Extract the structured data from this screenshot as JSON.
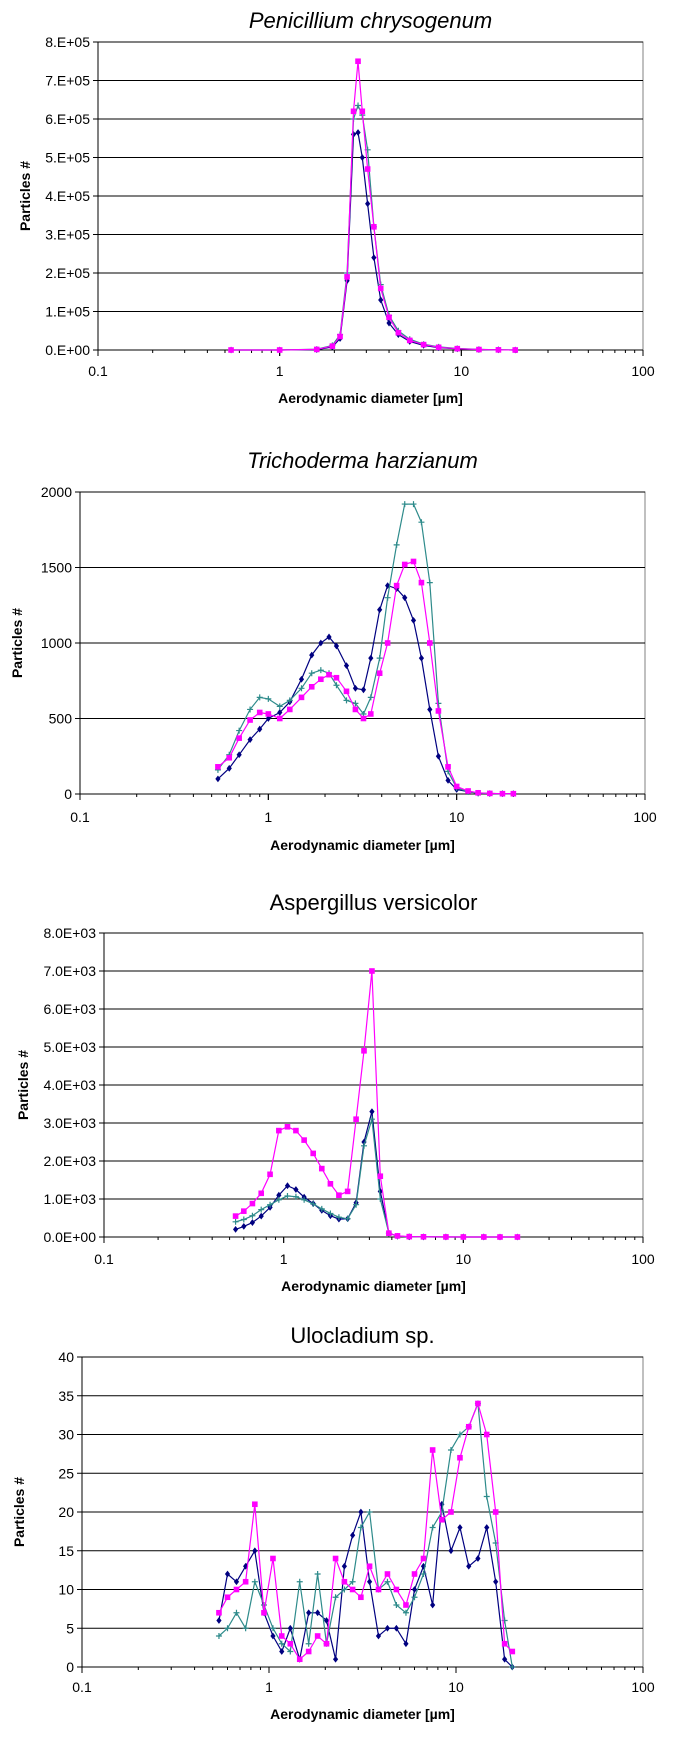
{
  "chart_data": [
    {
      "type": "line",
      "title": "Penicillium chrysogenum",
      "title_italic": true,
      "xlabel": "Aerodynamic diameter [µm]",
      "ylabel": "Particles #",
      "x_scale": "log",
      "xlim": [
        0.1,
        100
      ],
      "ylim": [
        0,
        800000
      ],
      "x_ticks": [
        0.1,
        1,
        10,
        100
      ],
      "x_tick_labels": [
        "0.1",
        "1",
        "10",
        "100"
      ],
      "y_ticks": [
        0,
        100000,
        200000,
        300000,
        400000,
        500000,
        600000,
        700000,
        800000
      ],
      "y_tick_labels": [
        "0.E+00",
        "1.E+05",
        "2.E+05",
        "3.E+05",
        "4.E+05",
        "5.E+05",
        "6.E+05",
        "7.E+05",
        "8.E+05"
      ],
      "grid": "horizontal",
      "series": [
        {
          "color": "#000080",
          "marker": "diamond",
          "x": [
            0.54,
            1.0,
            1.6,
            1.95,
            2.15,
            2.35,
            2.55,
            2.7,
            2.85,
            3.05,
            3.3,
            3.6,
            4.0,
            4.5,
            5.2,
            6.2,
            7.5,
            9.5,
            12.5,
            16,
            19.8
          ],
          "values": [
            0,
            0,
            1000,
            8000,
            30000,
            180000,
            560000,
            565000,
            500000,
            380000,
            240000,
            130000,
            70000,
            40000,
            22000,
            12000,
            6000,
            3000,
            1000,
            500,
            0
          ]
        },
        {
          "color": "#2e8b8b",
          "marker": "plus",
          "x": [
            0.54,
            1.0,
            1.6,
            1.95,
            2.15,
            2.35,
            2.55,
            2.7,
            2.85,
            3.05,
            3.3,
            3.6,
            4.0,
            4.5,
            5.2,
            6.2,
            7.5,
            9.5,
            12.5,
            16,
            19.8
          ],
          "values": [
            0,
            0,
            2000,
            12000,
            40000,
            200000,
            600000,
            635000,
            610000,
            520000,
            320000,
            170000,
            90000,
            50000,
            28000,
            15000,
            8000,
            4000,
            1500,
            500,
            0
          ]
        },
        {
          "color": "#ff00ff",
          "marker": "square",
          "x": [
            0.54,
            1.0,
            1.6,
            1.95,
            2.15,
            2.35,
            2.55,
            2.7,
            2.85,
            3.05,
            3.3,
            3.6,
            4.0,
            4.5,
            5.2,
            6.2,
            7.5,
            9.5,
            12.5,
            16,
            19.8
          ],
          "values": [
            0,
            0,
            1500,
            10000,
            35000,
            190000,
            620000,
            750000,
            620000,
            470000,
            320000,
            160000,
            85000,
            45000,
            25000,
            14000,
            7000,
            3500,
            1200,
            400,
            0
          ]
        }
      ]
    },
    {
      "type": "line",
      "title": "Trichoderma harzianum",
      "title_italic": true,
      "xlabel": "Aerodynamic diameter [µm]",
      "ylabel": "Particles #",
      "x_scale": "log",
      "xlim": [
        0.1,
        100
      ],
      "ylim": [
        0,
        2000
      ],
      "x_ticks": [
        0.1,
        1,
        10,
        100
      ],
      "x_tick_labels": [
        "0.1",
        "1",
        "10",
        "100"
      ],
      "y_ticks": [
        0,
        500,
        1000,
        1500,
        2000
      ],
      "y_tick_labels": [
        "0",
        "500",
        "1000",
        "1500",
        "2000"
      ],
      "grid": "horizontal",
      "series": [
        {
          "color": "#000080",
          "marker": "diamond",
          "x": [
            0.54,
            0.62,
            0.7,
            0.8,
            0.9,
            1.0,
            1.15,
            1.3,
            1.5,
            1.7,
            1.9,
            2.1,
            2.3,
            2.6,
            2.9,
            3.2,
            3.5,
            3.9,
            4.3,
            4.8,
            5.3,
            5.9,
            6.5,
            7.2,
            8.0,
            9.0,
            10.0,
            11.5,
            13,
            15,
            17.5,
            20
          ],
          "values": [
            100,
            170,
            260,
            360,
            430,
            500,
            540,
            610,
            760,
            920,
            1000,
            1040,
            980,
            850,
            700,
            690,
            900,
            1220,
            1380,
            1360,
            1300,
            1150,
            900,
            560,
            250,
            90,
            30,
            15,
            5,
            3,
            2,
            2
          ]
        },
        {
          "color": "#2e8b8b",
          "marker": "plus",
          "x": [
            0.54,
            0.62,
            0.7,
            0.8,
            0.9,
            1.0,
            1.15,
            1.3,
            1.5,
            1.7,
            1.9,
            2.1,
            2.3,
            2.6,
            2.9,
            3.2,
            3.5,
            3.9,
            4.3,
            4.8,
            5.3,
            5.9,
            6.5,
            7.2,
            8.0,
            9.0,
            10.0,
            11.5,
            13,
            15,
            17.5,
            20
          ],
          "values": [
            160,
            260,
            420,
            560,
            640,
            630,
            580,
            620,
            700,
            800,
            820,
            800,
            720,
            620,
            600,
            530,
            640,
            900,
            1300,
            1650,
            1920,
            1920,
            1800,
            1400,
            600,
            150,
            40,
            15,
            5,
            3,
            2,
            2
          ]
        },
        {
          "color": "#ff00ff",
          "marker": "square",
          "x": [
            0.54,
            0.62,
            0.7,
            0.8,
            0.9,
            1.0,
            1.15,
            1.3,
            1.5,
            1.7,
            1.9,
            2.1,
            2.3,
            2.6,
            2.9,
            3.2,
            3.5,
            3.9,
            4.3,
            4.8,
            5.3,
            5.9,
            6.5,
            7.2,
            8.0,
            9.0,
            10.0,
            11.5,
            13,
            15,
            17.5,
            20
          ],
          "values": [
            180,
            240,
            370,
            490,
            540,
            530,
            500,
            560,
            640,
            710,
            760,
            790,
            770,
            680,
            560,
            500,
            530,
            800,
            1000,
            1380,
            1520,
            1540,
            1400,
            1000,
            550,
            180,
            50,
            20,
            8,
            4,
            2,
            2
          ]
        }
      ]
    },
    {
      "type": "line",
      "title": "Aspergillus versicolor",
      "title_italic": false,
      "xlabel": "Aerodynamic diameter [µm]",
      "ylabel": "Particles #",
      "x_scale": "log",
      "xlim": [
        0.1,
        100
      ],
      "ylim": [
        0,
        8000
      ],
      "x_ticks": [
        0.1,
        1,
        10,
        100
      ],
      "x_tick_labels": [
        "0.1",
        "1",
        "10",
        "100"
      ],
      "y_ticks": [
        0,
        1000,
        2000,
        3000,
        4000,
        5000,
        6000,
        7000,
        8000
      ],
      "y_tick_labels": [
        "0.0E+00",
        "1.0E+03",
        "2.0E+03",
        "3.0E+03",
        "4.0E+03",
        "5.0E+03",
        "6.0E+03",
        "7.0E+03",
        "8.0E+03"
      ],
      "grid": "horizontal",
      "series": [
        {
          "color": "#000080",
          "marker": "diamond",
          "x": [
            0.54,
            0.6,
            0.67,
            0.75,
            0.84,
            0.94,
            1.05,
            1.17,
            1.3,
            1.46,
            1.63,
            1.82,
            2.03,
            2.27,
            2.53,
            2.8,
            3.1,
            3.45,
            3.85,
            4.3,
            5,
            6,
            8,
            10,
            13,
            16,
            20
          ],
          "values": [
            200,
            280,
            380,
            550,
            780,
            1100,
            1350,
            1250,
            1050,
            880,
            700,
            560,
            470,
            480,
            900,
            2500,
            3300,
            1200,
            100,
            20,
            5,
            2,
            1,
            1,
            1,
            0,
            0
          ]
        },
        {
          "color": "#2e8b8b",
          "marker": "plus",
          "x": [
            0.54,
            0.6,
            0.67,
            0.75,
            0.84,
            0.94,
            1.05,
            1.17,
            1.3,
            1.46,
            1.63,
            1.82,
            2.03,
            2.27,
            2.53,
            2.8,
            3.1,
            3.45,
            3.85,
            4.3,
            5,
            6,
            8,
            10,
            13,
            16,
            20
          ],
          "values": [
            400,
            460,
            560,
            720,
            850,
            980,
            1080,
            1060,
            980,
            870,
            740,
            620,
            520,
            480,
            850,
            2400,
            3100,
            1000,
            100,
            20,
            5,
            2,
            1,
            1,
            1,
            0,
            0
          ]
        },
        {
          "color": "#ff00ff",
          "marker": "square",
          "x": [
            0.54,
            0.6,
            0.67,
            0.75,
            0.84,
            0.94,
            1.05,
            1.17,
            1.3,
            1.46,
            1.63,
            1.82,
            2.03,
            2.27,
            2.53,
            2.8,
            3.1,
            3.45,
            3.85,
            4.3,
            5,
            6,
            8,
            10,
            13,
            16,
            20
          ],
          "values": [
            550,
            680,
            880,
            1150,
            1650,
            2800,
            2900,
            2800,
            2550,
            2200,
            1800,
            1400,
            1100,
            1200,
            3100,
            4900,
            7000,
            1600,
            100,
            30,
            10,
            5,
            2,
            1,
            1,
            0,
            0
          ]
        }
      ]
    },
    {
      "type": "line",
      "title": "Ulocladium sp.",
      "title_italic": false,
      "xlabel": "Aerodynamic diameter [µm]",
      "ylabel": "Particles #",
      "x_scale": "log",
      "xlim": [
        0.1,
        100
      ],
      "ylim": [
        0,
        40
      ],
      "x_ticks": [
        0.1,
        1,
        10,
        100
      ],
      "x_tick_labels": [
        "0.1",
        "1",
        "10",
        "100"
      ],
      "y_ticks": [
        0,
        5,
        10,
        15,
        20,
        25,
        30,
        35,
        40
      ],
      "y_tick_labels": [
        "0",
        "5",
        "10",
        "15",
        "20",
        "25",
        "30",
        "35",
        "40"
      ],
      "grid": "horizontal",
      "series": [
        {
          "color": "#000080",
          "marker": "diamond",
          "x": [
            0.54,
            0.6,
            0.67,
            0.75,
            0.84,
            0.94,
            1.05,
            1.17,
            1.3,
            1.46,
            1.63,
            1.82,
            2.03,
            2.27,
            2.53,
            2.8,
            3.1,
            3.45,
            3.85,
            4.3,
            4.8,
            5.4,
            6.0,
            6.7,
            7.5,
            8.4,
            9.4,
            10.5,
            11.7,
            13.1,
            14.6,
            16.3,
            18.2,
            20
          ],
          "values": [
            6,
            12,
            11,
            13,
            15,
            7,
            4,
            2,
            5,
            1,
            7,
            7,
            6,
            1,
            13,
            17,
            20,
            11,
            4,
            5,
            5,
            3,
            10,
            13,
            8,
            21,
            15,
            18,
            13,
            14,
            18,
            11,
            1,
            0
          ]
        },
        {
          "color": "#2e8b8b",
          "marker": "plus",
          "x": [
            0.54,
            0.6,
            0.67,
            0.75,
            0.84,
            0.94,
            1.05,
            1.17,
            1.3,
            1.46,
            1.63,
            1.82,
            2.03,
            2.27,
            2.53,
            2.8,
            3.1,
            3.45,
            3.85,
            4.3,
            4.8,
            5.4,
            6.0,
            6.7,
            7.5,
            8.4,
            9.4,
            10.5,
            11.7,
            13.1,
            14.6,
            16.3,
            18.2,
            20
          ],
          "values": [
            4,
            5,
            7,
            5,
            11,
            8,
            5,
            3,
            2,
            11,
            3,
            12,
            3,
            9,
            10,
            11,
            18,
            20,
            10,
            11,
            8,
            7,
            9,
            12,
            18,
            20,
            28,
            30,
            31,
            34,
            22,
            16,
            6,
            0
          ]
        },
        {
          "color": "#ff00ff",
          "marker": "square",
          "x": [
            0.54,
            0.6,
            0.67,
            0.75,
            0.84,
            0.94,
            1.05,
            1.17,
            1.3,
            1.46,
            1.63,
            1.82,
            2.03,
            2.27,
            2.53,
            2.8,
            3.1,
            3.45,
            3.85,
            4.3,
            4.8,
            5.4,
            6.0,
            6.7,
            7.5,
            8.4,
            9.4,
            10.5,
            11.7,
            13.1,
            14.6,
            16.3,
            18.2,
            20
          ],
          "values": [
            7,
            9,
            10,
            11,
            21,
            7,
            14,
            4,
            3,
            1,
            2,
            4,
            3,
            14,
            11,
            10,
            9,
            13,
            10,
            12,
            10,
            8,
            12,
            14,
            28,
            19,
            20,
            27,
            31,
            34,
            30,
            20,
            3,
            2
          ]
        }
      ]
    }
  ]
}
